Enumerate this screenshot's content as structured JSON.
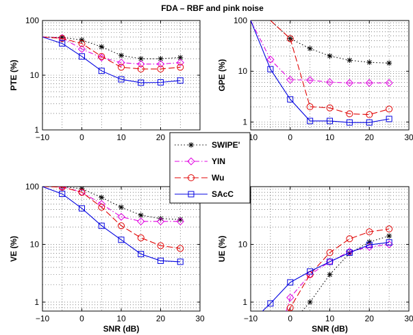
{
  "title": "FDA – RBF and pink noise",
  "colors": {
    "SWIPE'": "#000000",
    "YIN": "#e000e0",
    "Wu": "#e00000",
    "SAcC": "#0000e0"
  },
  "markers": {
    "SWIPE'": "star",
    "YIN": "diamond",
    "Wu": "circle",
    "SAcC": "square"
  },
  "dashes": {
    "SWIPE'": "1.5,3",
    "YIN": "7,3,1.5,3",
    "Wu": "9,4",
    "SAcC": ""
  },
  "legend": {
    "entries": [
      "SWIPE'",
      "YIN",
      "Wu",
      "SAcC"
    ]
  },
  "chart_data": [
    {
      "type": "line",
      "id": "pte",
      "title": "",
      "xlabel": "",
      "ylabel": "PTE (%)",
      "xlim": [
        -10,
        30
      ],
      "ylim": [
        1,
        100
      ],
      "yscale": "log",
      "grid": true,
      "xticks": [
        "−10",
        "0",
        "10",
        "20",
        "30"
      ],
      "xtick_values": [
        -10,
        0,
        10,
        20,
        30
      ],
      "yticks": [
        "1",
        "10",
        "100"
      ],
      "ytick_values": [
        1,
        10,
        100
      ],
      "series": [
        {
          "name": "SWIPE'",
          "x": [
            -10,
            -5,
            0,
            5,
            10,
            15,
            20,
            25
          ],
          "y": [
            50,
            49,
            44,
            33,
            23,
            20,
            20,
            21
          ],
          "markers": [
            false,
            true,
            true,
            true,
            true,
            true,
            true,
            true
          ]
        },
        {
          "name": "YIN",
          "x": [
            -10,
            -5,
            0,
            5,
            10,
            15,
            20,
            25
          ],
          "y": [
            50,
            48,
            30,
            21,
            17,
            16,
            16,
            17
          ],
          "markers": [
            false,
            true,
            true,
            true,
            true,
            true,
            true,
            true
          ]
        },
        {
          "name": "Wu",
          "x": [
            -10,
            -5,
            0,
            5,
            10,
            15,
            20,
            25
          ],
          "y": [
            50,
            47,
            38,
            22,
            14,
            13,
            13,
            14
          ],
          "markers": [
            false,
            true,
            true,
            true,
            true,
            true,
            true,
            true
          ]
        },
        {
          "name": "SAcC",
          "x": [
            -10,
            -5,
            0,
            5,
            10,
            15,
            20,
            25
          ],
          "y": [
            50,
            38,
            22,
            12,
            8.4,
            7.3,
            7.4,
            8
          ],
          "markers": [
            false,
            true,
            true,
            true,
            true,
            true,
            true,
            true
          ]
        }
      ]
    },
    {
      "type": "line",
      "id": "gpe",
      "title": "",
      "xlabel": "",
      "ylabel": "GPE (%)",
      "xlim": [
        -10,
        30
      ],
      "ylim": [
        0.7,
        100
      ],
      "yscale": "log",
      "grid": true,
      "xticks": [
        "−10",
        "0",
        "10",
        "20",
        "30"
      ],
      "xtick_values": [
        -10,
        0,
        10,
        20,
        30
      ],
      "yticks": [
        "1",
        "10",
        "100"
      ],
      "ytick_values": [
        1,
        10,
        100
      ],
      "series": [
        {
          "name": "SWIPE'",
          "x": [
            -5,
            0,
            5,
            10,
            15,
            20,
            25
          ],
          "y": [
            100,
            44,
            28,
            20,
            16.5,
            15,
            14.5
          ],
          "markers": [
            false,
            true,
            true,
            true,
            true,
            true,
            true
          ]
        },
        {
          "name": "YIN",
          "x": [
            -10,
            -5,
            0,
            5,
            10,
            15,
            20,
            25
          ],
          "y": [
            100,
            17,
            6.8,
            6.7,
            6.1,
            5.9,
            5.9,
            5.9
          ],
          "markers": [
            false,
            true,
            true,
            true,
            true,
            true,
            true,
            true
          ]
        },
        {
          "name": "Wu",
          "x": [
            -5,
            0,
            5,
            10,
            15,
            20,
            25
          ],
          "y": [
            100,
            44,
            2,
            1.9,
            1.45,
            1.4,
            1.8
          ],
          "markers": [
            false,
            true,
            true,
            true,
            true,
            true,
            true
          ]
        },
        {
          "name": "SAcC",
          "x": [
            -10,
            -5,
            0,
            5,
            10,
            15,
            20,
            25
          ],
          "y": [
            100,
            11,
            2.8,
            1.05,
            1.05,
            0.98,
            0.98,
            1.15
          ],
          "markers": [
            false,
            true,
            true,
            true,
            true,
            true,
            true,
            true
          ]
        }
      ]
    },
    {
      "type": "line",
      "id": "ve",
      "title": "",
      "xlabel": "SNR (dB)",
      "ylabel": "VE (%)",
      "xlim": [
        -10,
        30
      ],
      "ylim": [
        0.7,
        100
      ],
      "yscale": "log",
      "grid": true,
      "xticks": [
        "−10",
        "0",
        "10",
        "20",
        "30"
      ],
      "xtick_values": [
        -10,
        0,
        10,
        20,
        30
      ],
      "yticks": [
        "1",
        "10",
        "100"
      ],
      "ytick_values": [
        1,
        10,
        100
      ],
      "series": [
        {
          "name": "SWIPE'",
          "x": [
            -10,
            -5,
            0,
            5,
            10,
            15,
            20,
            25
          ],
          "y": [
            100,
            100,
            92,
            65,
            44,
            32,
            28,
            27
          ],
          "markers": [
            false,
            true,
            true,
            true,
            true,
            true,
            true,
            true
          ]
        },
        {
          "name": "YIN",
          "x": [
            -10,
            -5,
            0,
            5,
            10,
            15,
            20,
            25
          ],
          "y": [
            100,
            100,
            80,
            50,
            30,
            25,
            25,
            25
          ],
          "markers": [
            false,
            true,
            true,
            true,
            true,
            true,
            true,
            true
          ]
        },
        {
          "name": "Wu",
          "x": [
            -10,
            -5,
            0,
            5,
            10,
            15,
            20,
            25
          ],
          "y": [
            100,
            98,
            80,
            44,
            21,
            13,
            9.5,
            8.5
          ],
          "markers": [
            false,
            true,
            true,
            true,
            true,
            true,
            true,
            true
          ]
        },
        {
          "name": "SAcC",
          "x": [
            -10,
            -5,
            0,
            5,
            10,
            15,
            20,
            25
          ],
          "y": [
            100,
            75,
            42,
            21,
            12,
            6.8,
            5.2,
            5
          ],
          "markers": [
            false,
            true,
            true,
            true,
            true,
            true,
            true,
            true
          ]
        }
      ]
    },
    {
      "type": "line",
      "id": "ue",
      "title": "",
      "xlabel": "SNR (dB)",
      "ylabel": "UE (%)",
      "xlim": [
        -10,
        30
      ],
      "ylim": [
        0.7,
        100
      ],
      "yscale": "log",
      "grid": true,
      "xticks": [
        "−10",
        "0",
        "10",
        "20",
        "30"
      ],
      "xtick_values": [
        -10,
        0,
        10,
        20,
        30
      ],
      "yticks": [
        "1",
        "10",
        "100"
      ],
      "ytick_values": [
        1,
        10,
        100
      ],
      "series": [
        {
          "name": "SWIPE'",
          "x": [
            3,
            5,
            10,
            15,
            20,
            25
          ],
          "y": [
            0.7,
            1,
            3,
            7,
            11,
            14
          ],
          "markers": [
            false,
            true,
            true,
            true,
            true,
            true
          ]
        },
        {
          "name": "YIN",
          "x": [
            -1,
            0,
            5,
            10,
            15,
            20,
            25
          ],
          "y": [
            0.7,
            1.2,
            3,
            5,
            7.5,
            9,
            10
          ],
          "markers": [
            false,
            true,
            true,
            true,
            true,
            true,
            true
          ]
        },
        {
          "name": "Wu",
          "x": [
            -0.5,
            0,
            5,
            10,
            15,
            20,
            25
          ],
          "y": [
            0.7,
            0.8,
            3,
            7.2,
            12.5,
            16.5,
            18.5
          ],
          "markers": [
            false,
            true,
            true,
            true,
            true,
            true,
            true
          ]
        },
        {
          "name": "SAcC",
          "x": [
            -7,
            -5,
            0,
            5,
            10,
            15,
            20,
            25
          ],
          "y": [
            0.7,
            0.95,
            2.2,
            3.4,
            5,
            7.2,
            9.8,
            10.8
          ],
          "markers": [
            false,
            true,
            true,
            true,
            true,
            true,
            true,
            true
          ]
        }
      ]
    }
  ]
}
